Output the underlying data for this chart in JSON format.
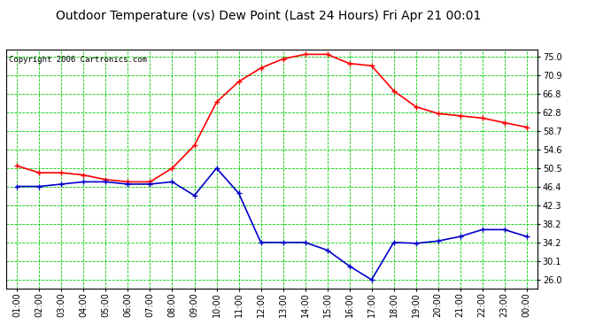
{
  "title": "Outdoor Temperature (vs) Dew Point (Last 24 Hours) Fri Apr 21 00:01",
  "copyright": "Copyright 2006 Cartronics.com",
  "x_labels": [
    "01:00",
    "02:00",
    "03:00",
    "04:00",
    "05:00",
    "06:00",
    "07:00",
    "08:00",
    "09:00",
    "10:00",
    "11:00",
    "12:00",
    "13:00",
    "14:00",
    "15:00",
    "16:00",
    "17:00",
    "18:00",
    "19:00",
    "20:00",
    "21:00",
    "22:00",
    "23:00",
    "00:00"
  ],
  "temp_data": [
    51.0,
    49.5,
    49.5,
    49.0,
    48.0,
    47.5,
    47.5,
    50.5,
    55.5,
    65.0,
    69.5,
    72.5,
    74.5,
    75.5,
    75.5,
    73.5,
    73.0,
    67.5,
    64.0,
    62.5,
    62.0,
    61.5,
    60.5,
    59.5
  ],
  "dew_data": [
    46.5,
    46.5,
    47.0,
    47.5,
    47.5,
    47.0,
    47.0,
    47.5,
    44.5,
    50.5,
    45.0,
    34.2,
    34.2,
    34.2,
    32.5,
    29.0,
    26.0,
    34.2,
    34.0,
    34.5,
    35.5,
    37.0,
    37.0,
    35.5
  ],
  "temp_color": "#FF0000",
  "dew_color": "#0000CC",
  "bg_color": "#FFFFFF",
  "plot_bg_color": "#FFFFFF",
  "grid_color": "#00CC00",
  "y_ticks": [
    26.0,
    30.1,
    34.2,
    38.2,
    42.3,
    46.4,
    50.5,
    54.6,
    58.7,
    62.8,
    66.8,
    70.9,
    75.0
  ],
  "y_min": 24.0,
  "y_max": 76.5,
  "marker": "+",
  "marker_size": 4,
  "line_width": 1.2,
  "title_fontsize": 10,
  "tick_fontsize": 7,
  "copyright_fontsize": 6.5
}
